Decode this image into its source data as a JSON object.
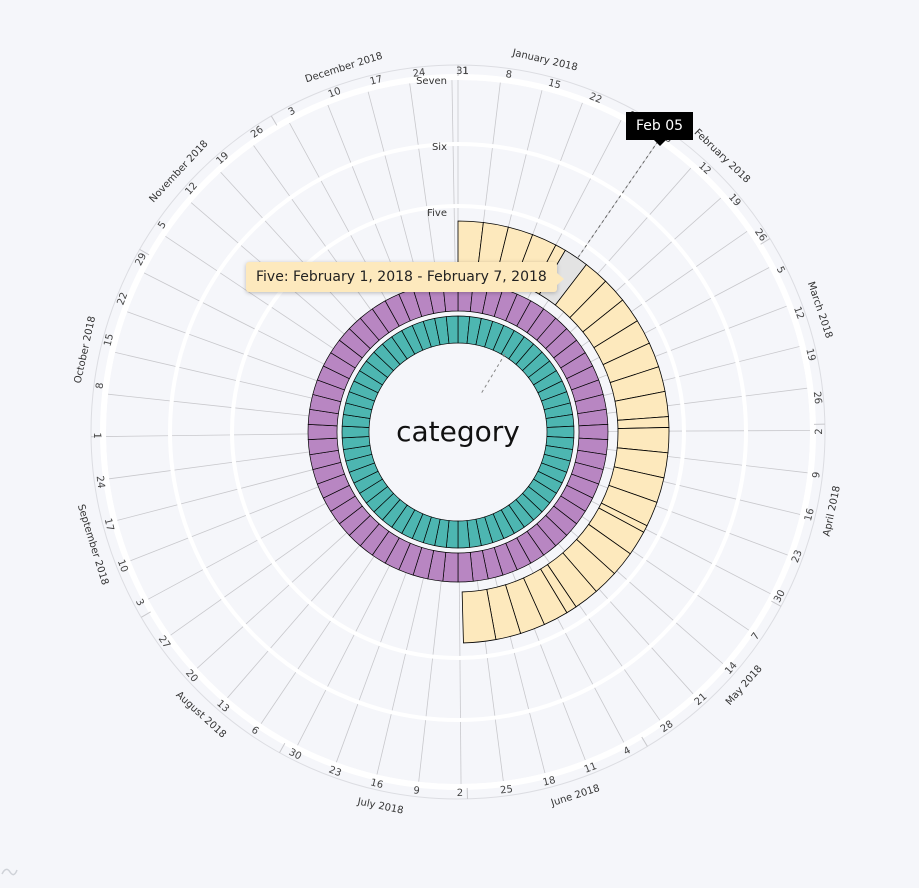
{
  "center_label": "category",
  "tooltips": {
    "day": "Feb 05",
    "range": "Five: February 1, 2018 - February 7, 2018"
  },
  "chart_data": {
    "type": "radial-timeline",
    "title": "",
    "center_label": "category",
    "start_date": "2018-01-01",
    "end_date": "2018-06-30",
    "months": [
      {
        "label": "January 2018",
        "date": "2018-01-01"
      },
      {
        "label": "February 2018",
        "date": "2018-02-01"
      },
      {
        "label": "March 2018",
        "date": "2018-03-01"
      },
      {
        "label": "April 2018",
        "date": "2018-04-01"
      },
      {
        "label": "May 2018",
        "date": "2018-05-01"
      },
      {
        "label": "June 2018",
        "date": "2018-06-01"
      },
      {
        "label": "July 2018",
        "date": "2018-07-01"
      },
      {
        "label": "August 2018",
        "date": "2018-08-01"
      },
      {
        "label": "September 2018",
        "date": "2018-09-01"
      },
      {
        "label": "October 2018",
        "date": "2018-10-01"
      },
      {
        "label": "November 2018",
        "date": "2018-11-01"
      },
      {
        "label": "December 2018",
        "date": "2018-12-01"
      }
    ],
    "week_ticks": [
      {
        "label": "1",
        "date": "2018-01-01"
      },
      {
        "label": "8",
        "date": "2018-01-08"
      },
      {
        "label": "15",
        "date": "2018-01-15"
      },
      {
        "label": "22",
        "date": "2018-01-22"
      },
      {
        "label": "29",
        "date": "2018-01-29"
      },
      {
        "label": "5",
        "date": "2018-02-05"
      },
      {
        "label": "12",
        "date": "2018-02-12"
      },
      {
        "label": "19",
        "date": "2018-02-19"
      },
      {
        "label": "26",
        "date": "2018-02-26"
      },
      {
        "label": "5",
        "date": "2018-03-05"
      },
      {
        "label": "12",
        "date": "2018-03-12"
      },
      {
        "label": "19",
        "date": "2018-03-19"
      },
      {
        "label": "26",
        "date": "2018-03-26"
      },
      {
        "label": "2",
        "date": "2018-04-02"
      },
      {
        "label": "9",
        "date": "2018-04-09"
      },
      {
        "label": "16",
        "date": "2018-04-16"
      },
      {
        "label": "23",
        "date": "2018-04-23"
      },
      {
        "label": "30",
        "date": "2018-04-30"
      },
      {
        "label": "7",
        "date": "2018-05-07"
      },
      {
        "label": "14",
        "date": "2018-05-14"
      },
      {
        "label": "21",
        "date": "2018-05-21"
      },
      {
        "label": "28",
        "date": "2018-05-28"
      },
      {
        "label": "4",
        "date": "2018-06-04"
      },
      {
        "label": "11",
        "date": "2018-06-11"
      },
      {
        "label": "18",
        "date": "2018-06-18"
      },
      {
        "label": "25",
        "date": "2018-06-25"
      },
      {
        "label": "2",
        "date": "2018-07-02"
      },
      {
        "label": "9",
        "date": "2018-07-09"
      },
      {
        "label": "16",
        "date": "2018-07-16"
      },
      {
        "label": "23",
        "date": "2018-07-23"
      },
      {
        "label": "30",
        "date": "2018-07-30"
      },
      {
        "label": "6",
        "date": "2018-08-06"
      },
      {
        "label": "13",
        "date": "2018-08-13"
      },
      {
        "label": "20",
        "date": "2018-08-20"
      },
      {
        "label": "27",
        "date": "2018-08-27"
      },
      {
        "label": "3",
        "date": "2018-09-03"
      },
      {
        "label": "10",
        "date": "2018-09-10"
      },
      {
        "label": "17",
        "date": "2018-09-17"
      },
      {
        "label": "24",
        "date": "2018-09-24"
      },
      {
        "label": "1",
        "date": "2018-10-01"
      },
      {
        "label": "8",
        "date": "2018-10-08"
      },
      {
        "label": "15",
        "date": "2018-10-15"
      },
      {
        "label": "22",
        "date": "2018-10-22"
      },
      {
        "label": "29",
        "date": "2018-10-29"
      },
      {
        "label": "5",
        "date": "2018-11-05"
      },
      {
        "label": "12",
        "date": "2018-11-12"
      },
      {
        "label": "19",
        "date": "2018-11-19"
      },
      {
        "label": "26",
        "date": "2018-11-26"
      },
      {
        "label": "3",
        "date": "2018-12-03"
      },
      {
        "label": "10",
        "date": "2018-12-10"
      },
      {
        "label": "17",
        "date": "2018-12-17"
      },
      {
        "label": "24",
        "date": "2018-12-24"
      },
      {
        "label": "31",
        "date": "2018-12-31"
      }
    ],
    "category_levels": [
      "Five",
      "Six",
      "Seven"
    ],
    "colors": {
      "outer": "#fde9bd",
      "middle": "#b886c2",
      "inner": "#4db6b1",
      "highlight": "#e3e3e3",
      "grid": "#c8c8cc"
    },
    "highlight": {
      "date": "2018-02-05",
      "label": "Feb 05",
      "series": "Five",
      "range": "February 1, 2018 - February 7, 2018"
    },
    "series": [
      {
        "name": "Five",
        "color": "#fde9bd",
        "ring": "outer",
        "segments": [
          [
            "2018-01-01",
            "2018-01-07"
          ],
          [
            "2018-01-08",
            "2018-01-14"
          ],
          [
            "2018-01-15",
            "2018-01-21"
          ],
          [
            "2018-01-22",
            "2018-01-28"
          ],
          [
            "2018-01-29",
            "2018-01-31"
          ],
          [
            "2018-02-01",
            "2018-02-07"
          ],
          [
            "2018-02-08",
            "2018-02-14"
          ],
          [
            "2018-02-15",
            "2018-02-21"
          ],
          [
            "2018-02-22",
            "2018-02-28"
          ],
          [
            "2018-03-01",
            "2018-03-07"
          ],
          [
            "2018-03-08",
            "2018-03-14"
          ],
          [
            "2018-03-15",
            "2018-03-21"
          ],
          [
            "2018-03-22",
            "2018-03-28"
          ],
          [
            "2018-03-29",
            "2018-03-31"
          ],
          [
            "2018-04-01",
            "2018-04-07"
          ],
          [
            "2018-04-08",
            "2018-04-14"
          ],
          [
            "2018-04-15",
            "2018-04-21"
          ],
          [
            "2018-04-22",
            "2018-04-28"
          ],
          [
            "2018-04-29",
            "2018-04-30"
          ],
          [
            "2018-05-01",
            "2018-05-07"
          ],
          [
            "2018-05-08",
            "2018-05-14"
          ],
          [
            "2018-05-15",
            "2018-05-21"
          ],
          [
            "2018-05-22",
            "2018-05-28"
          ],
          [
            "2018-05-29",
            "2018-05-31"
          ],
          [
            "2018-06-01",
            "2018-06-07"
          ],
          [
            "2018-06-08",
            "2018-06-14"
          ],
          [
            "2018-06-15",
            "2018-06-21"
          ],
          [
            "2018-06-22",
            "2018-06-30"
          ]
        ]
      }
    ]
  }
}
